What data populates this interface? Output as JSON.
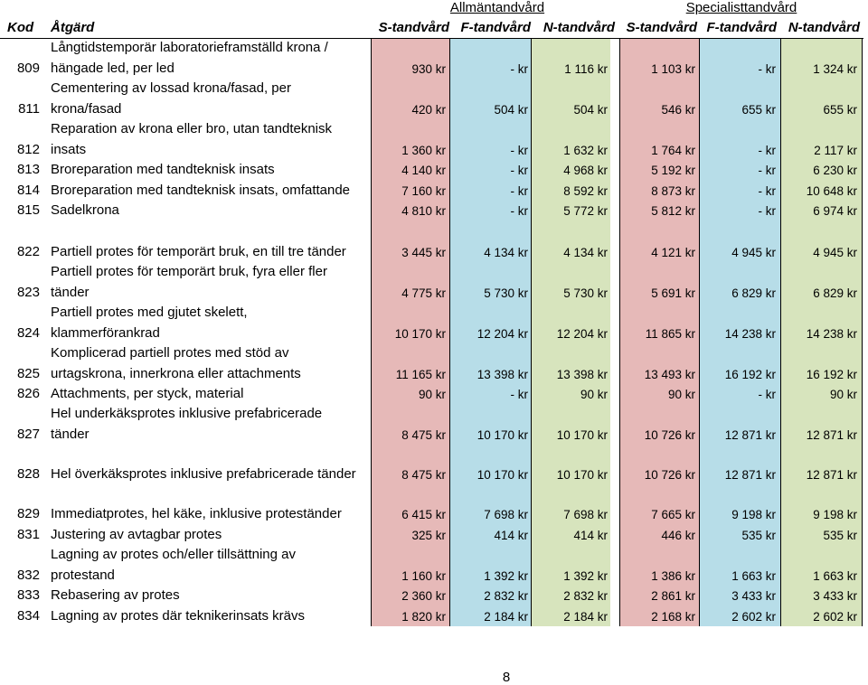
{
  "header": {
    "group1": "Allmäntandvård",
    "group2": "Specialisttandvård",
    "kod": "Kod",
    "atgard": "Åtgärd",
    "cols": [
      "S-tandvård",
      "F-tandvård",
      "N-tandvård",
      "S-tandvård",
      "F-tandvård",
      "N-tandvård"
    ]
  },
  "rows": [
    {
      "kod": "809",
      "lines": [
        "Långtidstemporär laboratorieframställd krona /",
        "hängade led, per led"
      ],
      "vals": [
        "930 kr",
        "- kr",
        "1 116 kr",
        "1 103 kr",
        "- kr",
        "1 324 kr"
      ]
    },
    {
      "kod": "811",
      "lines": [
        "Cementering av lossad krona/fasad, per",
        "krona/fasad"
      ],
      "vals": [
        "420 kr",
        "504 kr",
        "504 kr",
        "546 kr",
        "655 kr",
        "655 kr"
      ]
    },
    {
      "kod": "812",
      "lines": [
        "Reparation av krona eller bro, utan tandteknisk",
        "insats"
      ],
      "vals": [
        "1 360 kr",
        "- kr",
        "1 632 kr",
        "1 764 kr",
        "- kr",
        "2 117 kr"
      ]
    },
    {
      "kod": "813",
      "lines": [
        "Broreparation med tandteknisk insats"
      ],
      "vals": [
        "4 140 kr",
        "- kr",
        "4 968 kr",
        "5 192 kr",
        "- kr",
        "6 230 kr"
      ]
    },
    {
      "kod": "814",
      "lines": [
        "Broreparation med tandteknisk insats, omfattande"
      ],
      "vals": [
        "7 160 kr",
        "- kr",
        "8 592 kr",
        "8 873 kr",
        "- kr",
        "10 648 kr"
      ]
    },
    {
      "kod": "815",
      "lines": [
        "Sadelkrona"
      ],
      "vals": [
        "4 810 kr",
        "- kr",
        "5 772 kr",
        "5 812 kr",
        "- kr",
        "6 974 kr"
      ]
    },
    {
      "kod": "822",
      "lines": [
        "Partiell protes för temporärt bruk, en till tre tänder"
      ],
      "vals": [
        "3 445 kr",
        "4 134 kr",
        "4 134 kr",
        "4 121 kr",
        "4 945 kr",
        "4 945 kr"
      ]
    },
    {
      "kod": "823",
      "lines": [
        "Partiell protes för temporärt bruk, fyra eller fler",
        "tänder"
      ],
      "vals": [
        "4 775 kr",
        "5 730 kr",
        "5 730 kr",
        "5 691 kr",
        "6 829 kr",
        "6 829 kr"
      ]
    },
    {
      "kod": "824",
      "lines": [
        "Partiell protes med gjutet skelett,",
        "klammerförankrad"
      ],
      "vals": [
        "10 170 kr",
        "12 204 kr",
        "12 204 kr",
        "11 865 kr",
        "14 238 kr",
        "14 238 kr"
      ]
    },
    {
      "kod": "825",
      "lines": [
        "Komplicerad partiell protes med stöd av",
        "urtagskrona, innerkrona eller attachments"
      ],
      "vals": [
        "11 165 kr",
        "13 398 kr",
        "13 398 kr",
        "13 493 kr",
        "16 192 kr",
        "16 192 kr"
      ]
    },
    {
      "kod": "826",
      "lines": [
        "Attachments, per styck, material"
      ],
      "vals": [
        "90 kr",
        "- kr",
        "90 kr",
        "90 kr",
        "- kr",
        "90 kr"
      ]
    },
    {
      "kod": "827",
      "lines": [
        "Hel underkäksprotes inklusive prefabricerade",
        "tänder"
      ],
      "vals": [
        "8 475 kr",
        "10 170 kr",
        "10 170 kr",
        "10 726 kr",
        "12 871 kr",
        "12 871 kr"
      ]
    },
    {
      "kod": "828",
      "lines": [
        "Hel överkäksprotes inklusive prefabricerade tänder"
      ],
      "vals": [
        "8 475 kr",
        "10 170 kr",
        "10 170 kr",
        "10 726 kr",
        "12 871 kr",
        "12 871 kr"
      ]
    },
    {
      "kod": "829",
      "lines": [
        "Immediatprotes, hel käke, inklusive proteständer"
      ],
      "vals": [
        "6 415 kr",
        "7 698 kr",
        "7 698 kr",
        "7 665 kr",
        "9 198 kr",
        "9 198 kr"
      ]
    },
    {
      "kod": "831",
      "lines": [
        "Justering av avtagbar protes"
      ],
      "vals": [
        "325 kr",
        "414 kr",
        "414 kr",
        "446 kr",
        "535 kr",
        "535 kr"
      ]
    },
    {
      "kod": "832",
      "lines": [
        "Lagning av protes och/eller tillsättning av",
        "protestand"
      ],
      "vals": [
        "1 160 kr",
        "1 392 kr",
        "1 392 kr",
        "1 386 kr",
        "1 663 kr",
        "1 663 kr"
      ]
    },
    {
      "kod": "833",
      "lines": [
        "Rebasering av protes"
      ],
      "vals": [
        "2 360 kr",
        "2 832 kr",
        "2 832 kr",
        "2 861 kr",
        "3 433 kr",
        "3 433 kr"
      ]
    },
    {
      "kod": "834",
      "lines": [
        "Lagning av protes där teknikerinsats krävs"
      ],
      "vals": [
        "1 820 kr",
        "2 184 kr",
        "2 184 kr",
        "2 168 kr",
        "2 602 kr",
        "2 602 kr"
      ]
    }
  ],
  "footer": {
    "page": "8"
  }
}
